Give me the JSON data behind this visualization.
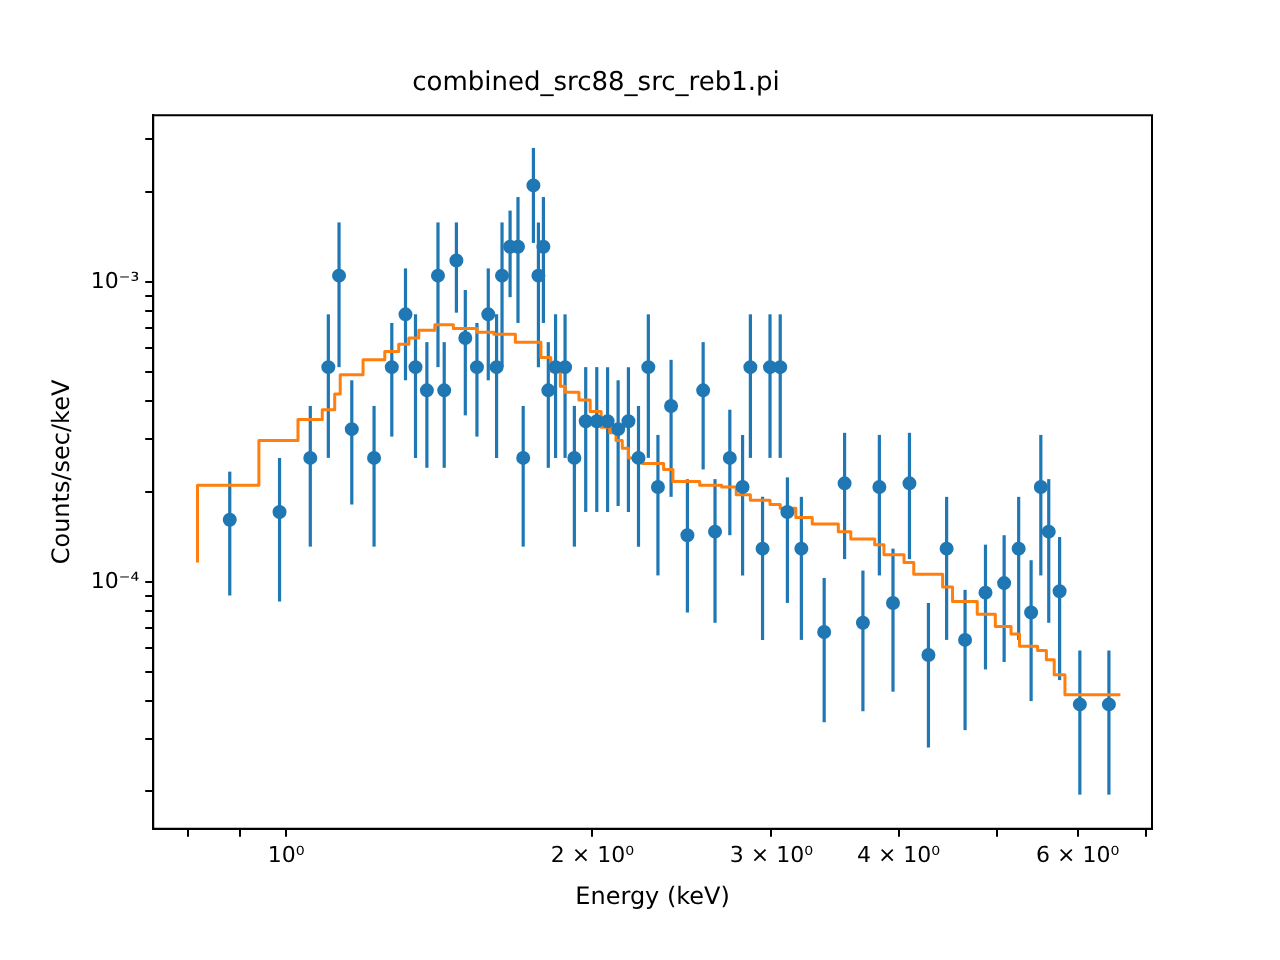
{
  "chart_data": {
    "type": "scatter",
    "title": "combined_src88_src_reb1.pi",
    "xlabel": "Energy (keV)",
    "ylabel": "Counts/sec/keV",
    "log": "xy",
    "grid": false,
    "legend": false,
    "xlim": [
      0.74,
      7.1
    ],
    "ylim": [
      1.5e-05,
      0.0036
    ],
    "xticks": [
      {
        "value": 0.8,
        "label": null
      },
      {
        "value": 0.9,
        "label": null
      },
      {
        "value": 1,
        "label": "10⁰"
      },
      {
        "value": 2,
        "label": "2 × 10⁰"
      },
      {
        "value": 3,
        "label": "3 × 10⁰"
      },
      {
        "value": 4,
        "label": "4 × 10⁰"
      },
      {
        "value": 5,
        "label": null
      },
      {
        "value": 6,
        "label": "6 × 10⁰"
      },
      {
        "value": 7,
        "label": null
      }
    ],
    "yticks": [
      {
        "value": 2e-05,
        "label": null
      },
      {
        "value": 3e-05,
        "label": null
      },
      {
        "value": 4e-05,
        "label": null
      },
      {
        "value": 5e-05,
        "label": null
      },
      {
        "value": 6e-05,
        "label": null
      },
      {
        "value": 7e-05,
        "label": null
      },
      {
        "value": 8e-05,
        "label": null
      },
      {
        "value": 9e-05,
        "label": null
      },
      {
        "value": 0.0001,
        "label": "10⁻⁴"
      },
      {
        "value": 0.0002,
        "label": null
      },
      {
        "value": 0.0003,
        "label": null
      },
      {
        "value": 0.0004,
        "label": null
      },
      {
        "value": 0.0005,
        "label": null
      },
      {
        "value": 0.0006,
        "label": null
      },
      {
        "value": 0.0007,
        "label": null
      },
      {
        "value": 0.0008,
        "label": null
      },
      {
        "value": 0.0009,
        "label": null
      },
      {
        "value": 0.001,
        "label": "10⁻³"
      },
      {
        "value": 0.002,
        "label": null
      },
      {
        "value": 0.003,
        "label": null
      }
    ],
    "series": [
      {
        "color": "#1f77b4",
        "marker": "circle",
        "x": [
          0.88,
          0.985,
          1.056,
          1.1,
          1.127,
          1.16,
          1.22,
          1.27,
          1.31,
          1.34,
          1.375,
          1.41,
          1.43,
          1.47,
          1.5,
          1.54,
          1.58,
          1.61,
          1.63,
          1.66,
          1.69,
          1.71,
          1.75,
          1.77,
          1.79,
          1.81,
          1.84,
          1.88,
          1.92,
          1.97,
          2.02,
          2.07,
          2.12,
          2.17,
          2.22,
          2.27,
          2.32,
          2.39,
          2.48,
          2.57,
          2.64,
          2.73,
          2.81,
          2.86,
          2.94,
          2.99,
          3.06,
          3.11,
          3.21,
          3.38,
          3.54,
          3.69,
          3.83,
          3.95,
          4.1,
          4.28,
          4.46,
          4.65,
          4.87,
          5.08,
          5.25,
          5.4,
          5.52,
          5.62,
          5.76,
          6.03,
          6.44
        ],
        "values": [
          0.000161,
          0.000171,
          0.000259,
          0.00052,
          0.00105,
          0.000323,
          0.000259,
          0.00052,
          0.00078,
          0.00052,
          0.000435,
          0.00105,
          0.000435,
          0.00118,
          0.00065,
          0.00052,
          0.00078,
          0.00052,
          0.00105,
          0.00131,
          0.00131,
          0.000259,
          0.0021,
          0.00105,
          0.00131,
          0.000435,
          0.00052,
          0.00052,
          0.000259,
          0.000343,
          0.000343,
          0.000343,
          0.000323,
          0.000343,
          0.000259,
          0.00052,
          0.000207,
          0.000386,
          0.000143,
          0.000435,
          0.000147,
          0.000259,
          0.000207,
          0.00052,
          0.000129,
          0.00052,
          0.00052,
          0.000171,
          0.000129,
          6.8e-05,
          0.000213,
          7.3e-05,
          0.000207,
          8.5e-05,
          0.000213,
          5.7e-05,
          0.000129,
          6.4e-05,
          9.2e-05,
          9.9e-05,
          0.000129,
          7.9e-05,
          0.000207,
          0.000147,
          9.3e-05,
          3.9e-05,
          3.9e-05
        ],
        "errors": [
          [
            9e-05,
            0.000233
          ],
          [
            8.6e-05,
            0.000259
          ],
          [
            0.000131,
            0.000386
          ],
          [
            0.000259,
            0.00078
          ],
          [
            0.00052,
            0.00158
          ],
          [
            0.000181,
            0.00047
          ],
          [
            0.000131,
            0.000386
          ],
          [
            0.000305,
            0.00073
          ],
          [
            0.00047,
            0.00111
          ],
          [
            0.000259,
            0.00078
          ],
          [
            0.00024,
            0.00063
          ],
          [
            0.00052,
            0.00158
          ],
          [
            0.00024,
            0.00063
          ],
          [
            0.00079,
            0.00158
          ],
          [
            0.000359,
            0.00094
          ],
          [
            0.000305,
            0.00073
          ],
          [
            0.00047,
            0.00111
          ],
          [
            0.000259,
            0.00078
          ],
          [
            0.00052,
            0.00158
          ],
          [
            0.00089,
            0.00173
          ],
          [
            0.00073,
            0.00192
          ],
          [
            0.000131,
            0.000386
          ],
          [
            0.00135,
            0.0028
          ],
          [
            0.00052,
            0.00158
          ],
          [
            0.00073,
            0.00192
          ],
          [
            0.00024,
            0.00063
          ],
          [
            0.000259,
            0.00078
          ],
          [
            0.000259,
            0.00078
          ],
          [
            0.000131,
            0.000386
          ],
          [
            0.000171,
            0.00052
          ],
          [
            0.000171,
            0.00052
          ],
          [
            0.000171,
            0.00052
          ],
          [
            0.000179,
            0.00047
          ],
          [
            0.000171,
            0.00052
          ],
          [
            0.000131,
            0.000386
          ],
          [
            0.000259,
            0.00078
          ],
          [
            0.000105,
            0.000309
          ],
          [
            0.000192,
            0.00055
          ],
          [
            7.9e-05,
            0.00022
          ],
          [
            0.000237,
            0.00063
          ],
          [
            7.3e-05,
            0.00022
          ],
          [
            0.000143,
            0.000375
          ],
          [
            0.000105,
            0.000309
          ],
          [
            0.000259,
            0.00078
          ],
          [
            6.4e-05,
            0.000192
          ],
          [
            0.000259,
            0.00078
          ],
          [
            0.000259,
            0.00078
          ],
          [
            8.5e-05,
            0.000223
          ],
          [
            6.4e-05,
            0.000192
          ],
          [
            3.4e-05,
            0.000103
          ],
          [
            0.000119,
            0.000314
          ],
          [
            3.7e-05,
            0.000109
          ],
          [
            0.000105,
            0.000309
          ],
          [
            4.3e-05,
            0.000129
          ],
          [
            0.000119,
            0.000314
          ],
          [
            2.8e-05,
            8.5e-05
          ],
          [
            6.4e-05,
            0.000192
          ],
          [
            3.2e-05,
            9.4e-05
          ],
          [
            5.1e-05,
            0.000133
          ],
          [
            5.4e-05,
            0.000143
          ],
          [
            6.4e-05,
            0.000192
          ],
          [
            4e-05,
            0.000118
          ],
          [
            0.000105,
            0.000309
          ],
          [
            7.3e-05,
            0.00022
          ],
          [
            4.7e-05,
            0.000141
          ],
          [
            1.95e-05,
            5.9e-05
          ],
          [
            1.95e-05,
            5.9e-05
          ]
        ]
      },
      {
        "type": "step",
        "color": "#ff7f0e",
        "marker": "none",
        "x": [
          0.818,
          0.94,
          1.027,
          1.085,
          1.116,
          1.13,
          1.19,
          1.25,
          1.29,
          1.32,
          1.35,
          1.4,
          1.46,
          1.54,
          1.6,
          1.68,
          1.78,
          1.82,
          1.86,
          1.88,
          1.94,
          1.99,
          2.04,
          2.08,
          2.11,
          2.14,
          2.17,
          2.24,
          2.35,
          2.4,
          2.55,
          2.68,
          2.77,
          2.86,
          2.99,
          3.06,
          3.17,
          3.29,
          3.49,
          3.59,
          3.79,
          3.87,
          4.05,
          4.14,
          4.42,
          4.52,
          4.78,
          4.98,
          5.16,
          5.26,
          5.48,
          5.59,
          5.69,
          5.83,
          6.22,
          6.61
        ],
        "values": [
          0.000116,
          0.00021,
          0.000296,
          0.000348,
          0.000375,
          0.000423,
          0.00049,
          0.00055,
          0.000586,
          0.00062,
          0.00065,
          0.00069,
          0.00072,
          0.0007,
          0.00068,
          0.00067,
          0.00063,
          0.00056,
          0.000505,
          0.000449,
          0.000429,
          0.000404,
          0.00037,
          0.000328,
          0.000314,
          0.000296,
          0.000279,
          0.000259,
          0.000248,
          0.000237,
          0.000216,
          0.00021,
          0.000207,
          0.000195,
          0.000187,
          0.000181,
          0.000176,
          0.000164,
          0.000156,
          0.000147,
          0.000139,
          0.000133,
          0.000123,
          0.000116,
          0.000106,
          9.6e-05,
          8.6e-05,
          7.8e-05,
          7.1e-05,
          6.7e-05,
          6.1e-05,
          5.9e-05,
          5.5e-05,
          4.9e-05,
          4.2e-05,
          4.2e-05
        ]
      }
    ]
  }
}
